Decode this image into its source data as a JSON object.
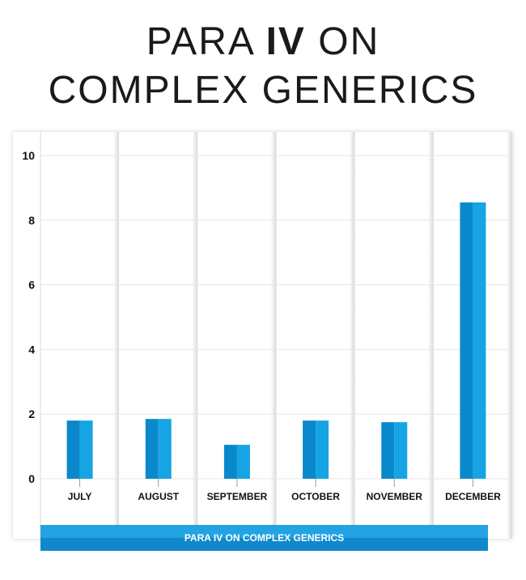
{
  "title": {
    "line1_pre": "PARA ",
    "line1_bold": "IV",
    "line1_post": " ON",
    "line2": "COMPLEX GENERICS"
  },
  "colors": {
    "bar_light": "#16a4e4",
    "bar_dark": "#0a88cc",
    "grid": "#e6e6e6",
    "column_shadow": "#d8d8d8"
  },
  "chart_data": {
    "type": "bar",
    "title": "PARA IV ON COMPLEX GENERICS",
    "categories": [
      "JULY",
      "AUGUST",
      "SEPTEMBER",
      "OCTOBER",
      "NOVEMBER",
      "DECEMBER"
    ],
    "series": [
      {
        "name": "PARA IV ON COMPLEX GENERICS",
        "values": [
          1.8,
          1.85,
          1.05,
          1.8,
          1.75,
          8.55
        ]
      }
    ],
    "yticks": [
      0,
      2,
      4,
      6,
      8,
      10
    ],
    "ylim": [
      0,
      10
    ],
    "xlabel": "",
    "ylabel": "",
    "grid": true,
    "legend": "bottom"
  }
}
